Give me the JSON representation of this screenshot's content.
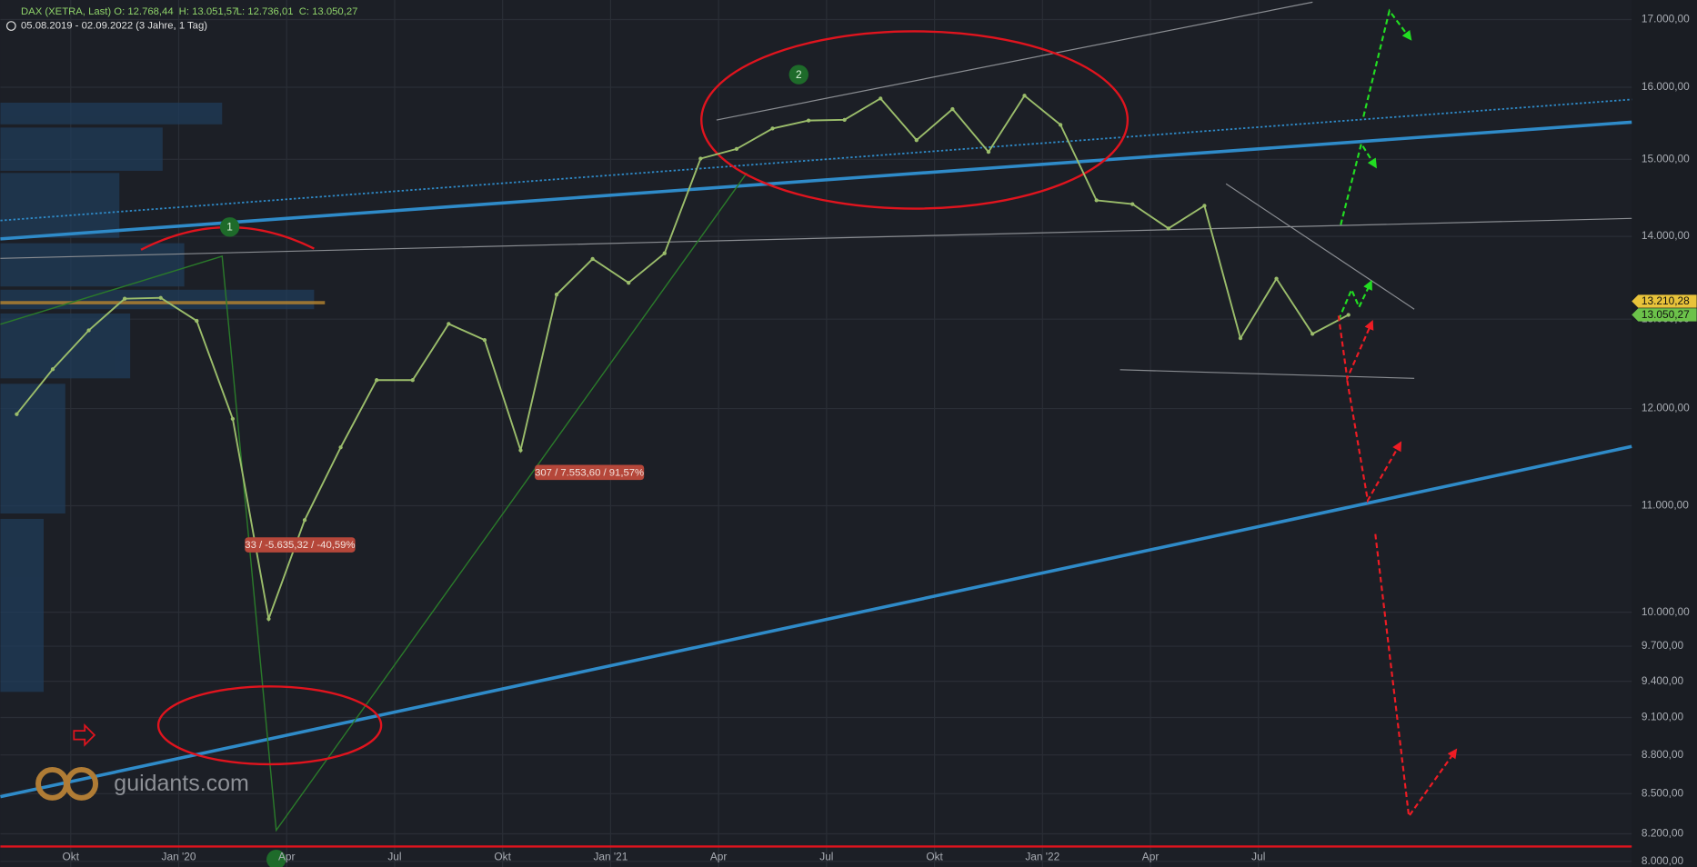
{
  "header": {
    "symbol": "DAX (XETRA, Last)",
    "open": "O: 12.768,44",
    "high": "H: 13.051,57",
    "low": "L: 12.736,01",
    "close": "C: 13.050,27",
    "range": "05.08.2019 - 02.09.2022",
    "period": "(3 Jahre, 1 Tag)"
  },
  "chart_data": {
    "type": "line",
    "log_scale": true,
    "grid": true,
    "color": "#9bbd6b",
    "categories": [
      null,
      null,
      "Okt",
      null,
      null,
      "Jan '20",
      null,
      null,
      "Apr",
      null,
      null,
      "Jul",
      null,
      null,
      "Okt",
      null,
      null,
      "Jan '21",
      null,
      null,
      "Apr",
      null,
      null,
      "Jul",
      null,
      null,
      "Okt",
      null,
      null,
      "Jan '22",
      null,
      null,
      "Apr",
      null,
      null,
      "Jul",
      null,
      null,
      null,
      null,
      null,
      null,
      null,
      null,
      null
    ],
    "values": [
      11940,
      12430,
      12870,
      13240,
      13250,
      12980,
      11890,
      9940,
      10860,
      11590,
      12310,
      12310,
      12945,
      12760,
      11560,
      13290,
      13720,
      13430,
      13790,
      15010,
      15140,
      15420,
      15530,
      15540,
      15840,
      15260,
      15690,
      15100,
      15880,
      15470,
      14460,
      14410,
      14100,
      14390,
      12780,
      13480,
      12830,
      13050,
      null,
      null,
      null,
      null,
      null,
      null,
      null
    ],
    "ylim": [
      7960,
      17300
    ],
    "yticks": [
      {
        "value": 8000,
        "label": "8.000,00"
      },
      {
        "value": 8200,
        "label": "8.200,00"
      },
      {
        "value": 8500,
        "label": "8.500,00"
      },
      {
        "value": 8800,
        "label": "8.800,00"
      },
      {
        "value": 9100,
        "label": "9.100,00"
      },
      {
        "value": 9400,
        "label": "9.400,00"
      },
      {
        "value": 9700,
        "label": "9.700,00"
      },
      {
        "value": 10000,
        "label": "10.000,00"
      },
      {
        "value": 11000,
        "label": "11.000,00"
      },
      {
        "value": 12000,
        "label": "12.000,00"
      },
      {
        "value": 13000,
        "label": "13.000,00"
      },
      {
        "value": 14000,
        "label": "14.000,00"
      },
      {
        "value": 15000,
        "label": "15.000,00"
      },
      {
        "value": 16000,
        "label": "16.000,00"
      },
      {
        "value": 17000,
        "label": "17.000,00"
      }
    ],
    "price_tags": [
      {
        "value": 13210.28,
        "label": "13.210,28",
        "color": "#e8c33a"
      },
      {
        "value": 13050.27,
        "label": "13.050,27",
        "color": "#6cc24a"
      }
    ],
    "annotations": [
      "33 / -5.635,32 / -40,59%",
      "307 / 7.553,60 / 91,57%",
      "1",
      "2"
    ]
  },
  "watermark": "guidants.com"
}
